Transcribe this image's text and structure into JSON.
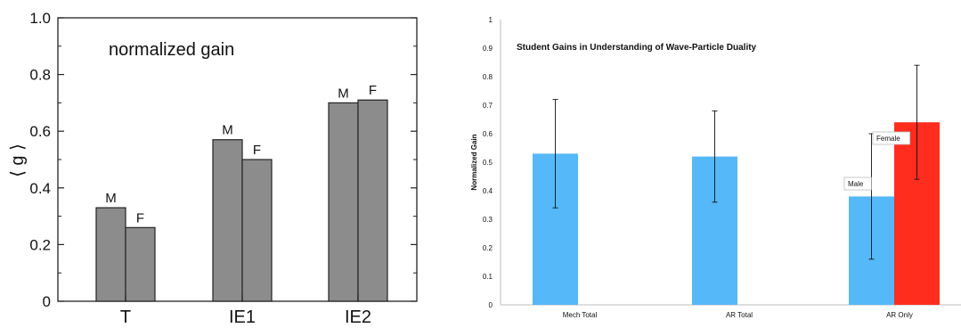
{
  "chart_data": [
    {
      "type": "bar",
      "title": "normalized gain",
      "xlabel": "",
      "ylabel": "⟨ g ⟩",
      "ylim": [
        0,
        1.0
      ],
      "yticks": [
        "0",
        "0.2",
        "0.4",
        "0.6",
        "0.8",
        "1.0"
      ],
      "categories": [
        "T",
        "IE1",
        "IE2"
      ],
      "series": [
        {
          "name": "M",
          "values": [
            0.33,
            0.57,
            0.7
          ]
        },
        {
          "name": "F",
          "values": [
            0.26,
            0.5,
            0.71
          ]
        }
      ],
      "grid": false,
      "bar_color": "#8c8c8c"
    },
    {
      "type": "bar",
      "title": "Student Gains in Understanding of Wave-Particle Duality",
      "xlabel": "",
      "ylabel": "Normalized Gain",
      "ylim": [
        0,
        1
      ],
      "yticks": [
        "0",
        "0.1",
        "0.2",
        "0.3",
        "0.4",
        "0.5",
        "0.6",
        "0.7",
        "0.8",
        "0.9",
        "1"
      ],
      "categories": [
        "Mech Total",
        "AR Total",
        "AR Only"
      ],
      "bars": [
        {
          "category": "Mech Total",
          "value": 0.53,
          "err_low": 0.34,
          "err_high": 0.72,
          "color": "#55b8f8"
        },
        {
          "category": "AR Total",
          "value": 0.52,
          "err_low": 0.36,
          "err_high": 0.68,
          "color": "#55b8f8"
        },
        {
          "category": "AR Only",
          "value": 0.38,
          "err_low": 0.16,
          "err_high": 0.6,
          "color": "#55b8f8",
          "label": "Male"
        },
        {
          "category": "AR Only",
          "value": 0.64,
          "err_low": 0.44,
          "err_high": 0.84,
          "color": "#ff2d1e",
          "label": "Female"
        }
      ],
      "grid": false
    }
  ]
}
